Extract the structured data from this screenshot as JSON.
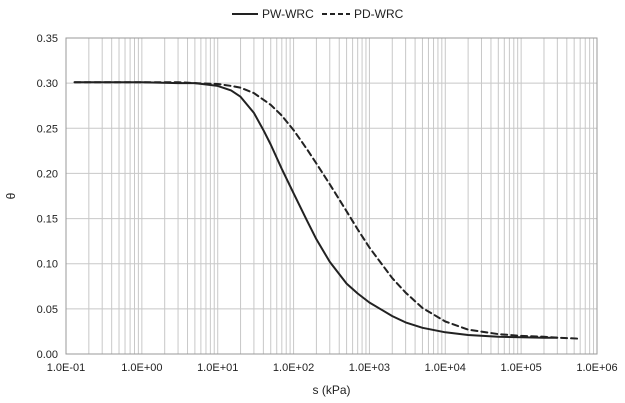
{
  "chart_data": {
    "type": "line",
    "xlabel": "s (kPa)",
    "ylabel": "θ",
    "x_scale": "log",
    "xlim": [
      0.1,
      1000000
    ],
    "ylim": [
      0,
      0.35
    ],
    "grid": true,
    "legend_position": "top",
    "x_tick_labels": [
      "1.0E-01",
      "1.0E+00",
      "1.0E+01",
      "1.0E+02",
      "1.0E+03",
      "1.0E+04",
      "1.0E+05",
      "1.0E+06"
    ],
    "x_tick_values": [
      0.1,
      1,
      10,
      100,
      1000,
      10000,
      100000,
      1000000
    ],
    "y_tick_labels": [
      "0.00",
      "0.05",
      "0.10",
      "0.15",
      "0.20",
      "0.25",
      "0.30",
      "0.35"
    ],
    "y_tick_values": [
      0,
      0.05,
      0.1,
      0.15,
      0.2,
      0.25,
      0.3,
      0.35
    ],
    "series": [
      {
        "name": "PW-WRC",
        "style": "solid",
        "color": "#222222",
        "x": [
          0.13,
          1,
          3,
          5,
          10,
          15,
          20,
          30,
          40,
          50,
          70,
          100,
          150,
          200,
          300,
          500,
          700,
          1000,
          2000,
          3000,
          5000,
          10000,
          20000,
          50000,
          100000,
          200000,
          300000
        ],
        "y": [
          0.301,
          0.301,
          0.3,
          0.3,
          0.297,
          0.292,
          0.285,
          0.267,
          0.248,
          0.232,
          0.205,
          0.178,
          0.148,
          0.127,
          0.102,
          0.078,
          0.067,
          0.057,
          0.042,
          0.035,
          0.029,
          0.024,
          0.021,
          0.019,
          0.0185,
          0.018,
          0.018
        ]
      },
      {
        "name": "PD-WRC",
        "style": "dashed",
        "color": "#222222",
        "x": [
          0.13,
          1,
          3,
          5,
          10,
          15,
          20,
          30,
          50,
          70,
          100,
          150,
          200,
          300,
          500,
          700,
          1000,
          2000,
          3000,
          5000,
          10000,
          20000,
          50000,
          100000,
          200000,
          300000,
          600000
        ],
        "y": [
          0.301,
          0.301,
          0.301,
          0.3,
          0.299,
          0.297,
          0.295,
          0.289,
          0.276,
          0.264,
          0.248,
          0.227,
          0.211,
          0.188,
          0.158,
          0.138,
          0.118,
          0.084,
          0.068,
          0.051,
          0.036,
          0.027,
          0.022,
          0.02,
          0.019,
          0.018,
          0.017
        ]
      }
    ]
  }
}
